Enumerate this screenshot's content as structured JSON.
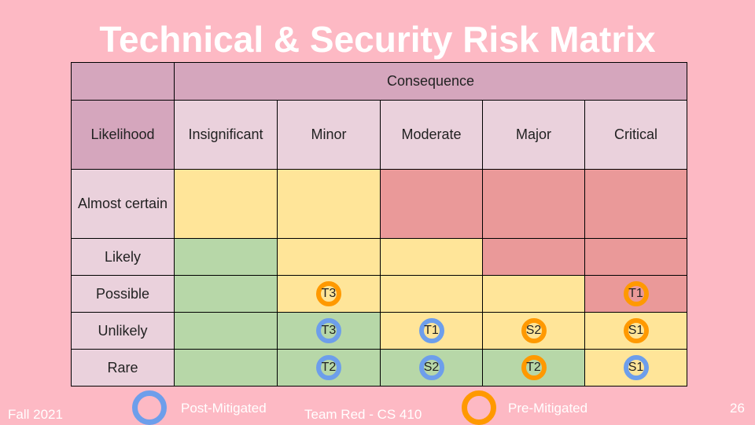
{
  "slide": {
    "title": "Technical & Security Risk Matrix",
    "footer_left": "Fall 2021",
    "footer_center": "Team Red - CS 410",
    "page_number": "26"
  },
  "matrix": {
    "consequence_label": "Consequence",
    "likelihood_label": "Likelihood",
    "consequences": [
      "Insignificant",
      "Minor",
      "Moderate",
      "Major",
      "Critical"
    ],
    "rows": [
      {
        "label": "Almost certain",
        "cells": [
          "",
          "",
          "",
          "",
          ""
        ]
      },
      {
        "label": "Likely",
        "cells": [
          "",
          "",
          "",
          "",
          ""
        ]
      },
      {
        "label": "Possible",
        "cells": [
          "",
          "T3",
          "",
          "",
          "T1"
        ]
      },
      {
        "label": "Unlikely",
        "cells": [
          "",
          "T3",
          "T1",
          "S2",
          "S1"
        ]
      },
      {
        "label": "Rare",
        "cells": [
          "",
          "T2",
          "S2",
          "T2",
          "S1"
        ]
      }
    ]
  },
  "legend": {
    "post_label": "Post-Mitigated",
    "pre_label": "Pre-Mitigated",
    "post_color": "#6d9eeb",
    "pre_color": "#ff9900"
  },
  "colors": {
    "background": "#fdb9c4",
    "green": "#b7d7a8",
    "yellow": "#ffe599",
    "red": "#ea9999"
  }
}
